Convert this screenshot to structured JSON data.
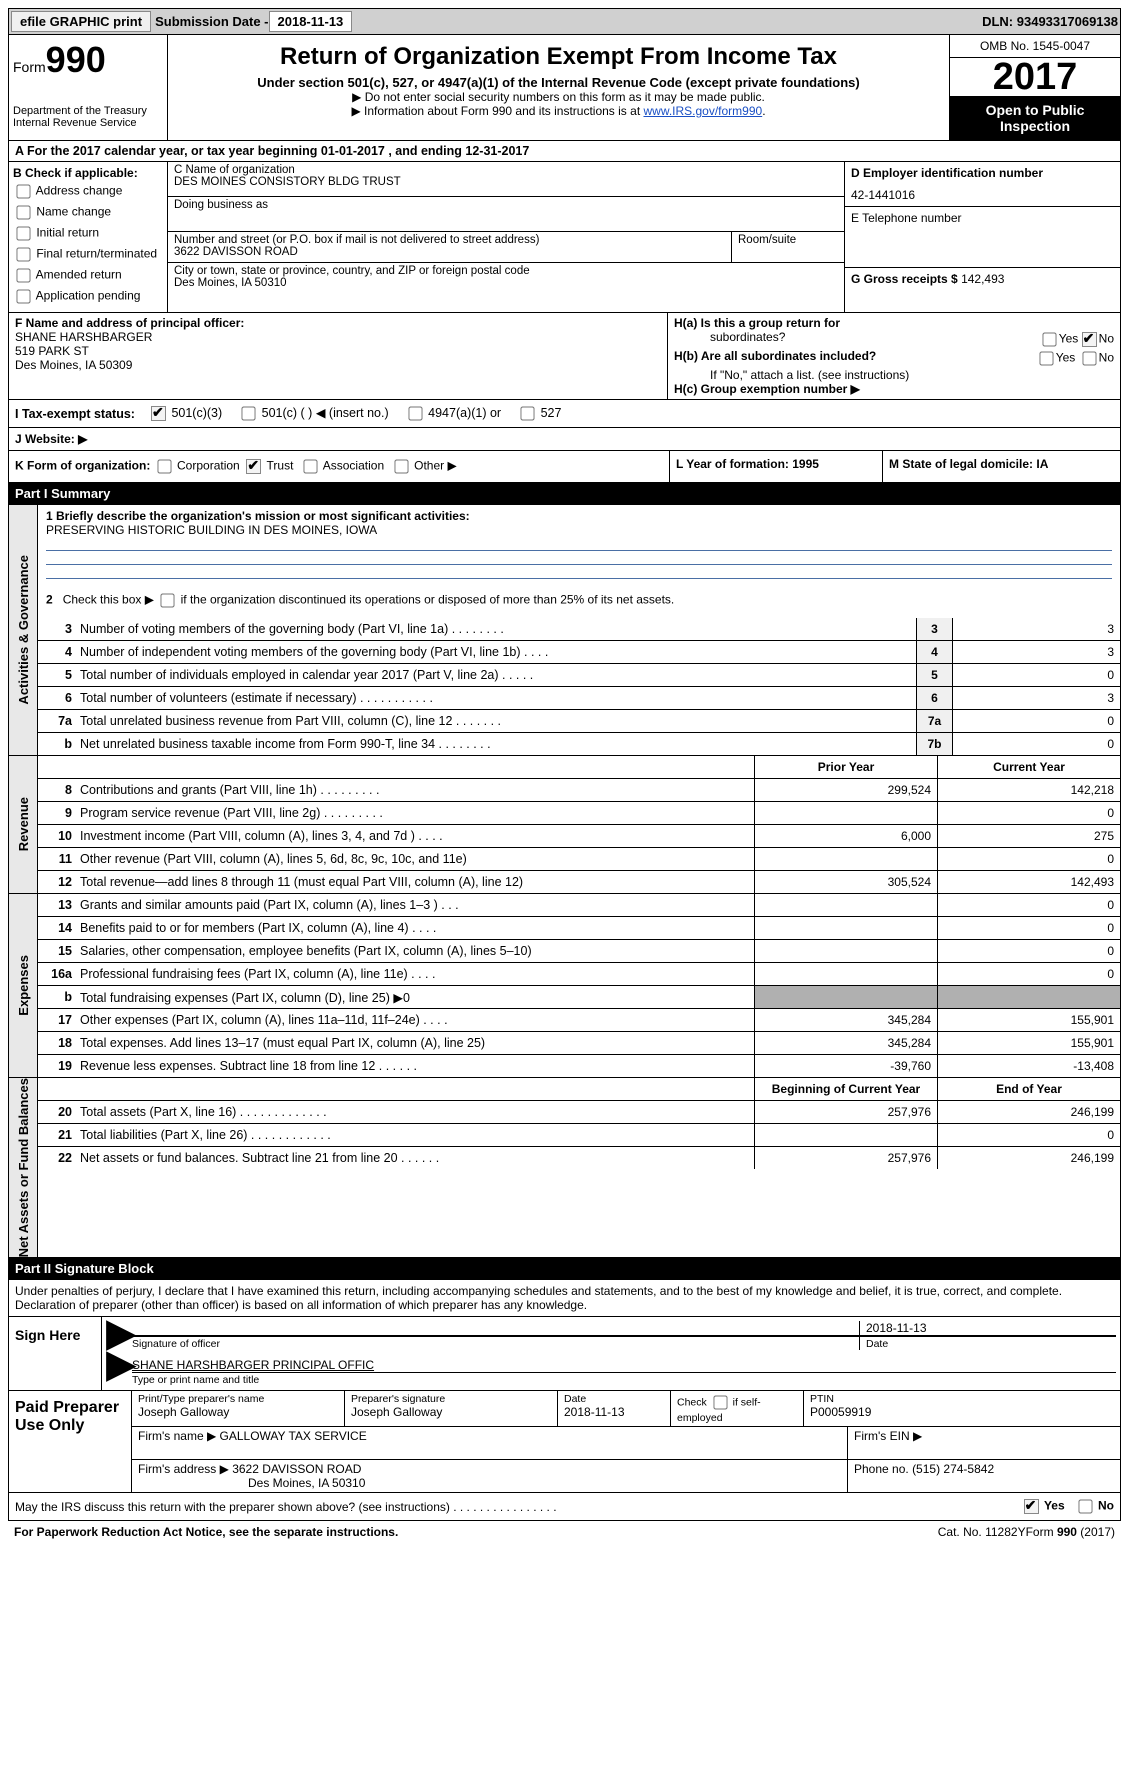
{
  "top": {
    "efile": "efile GRAPHIC print",
    "submission_label": "Submission Date  - ",
    "submission_date": "2018-11-13",
    "dln_label": "DLN: ",
    "dln": "93493317069138"
  },
  "header": {
    "form_label": "Form",
    "form_number": "990",
    "dept1": "Department of the Treasury",
    "dept2": "Internal Revenue Service",
    "title": "Return of Organization Exempt From Income Tax",
    "subtitle": "Under section 501(c), 527, or 4947(a)(1) of the Internal Revenue Code (except private foundations)",
    "note1": "▶ Do not enter social security numbers on this form as it may be made public.",
    "note2_pre": "▶ Information about Form 990 and its instructions is at ",
    "note2_link": "www.IRS.gov/form990",
    "omb": "OMB No. 1545-0047",
    "year": "2017",
    "inspection": "Open to Public Inspection"
  },
  "section_a": "A   For the 2017 calendar year, or tax year beginning 01-01-2017    , and ending 12-31-2017",
  "col_b": {
    "header": "B Check if applicable:",
    "opts": [
      "Address change",
      "Name change",
      "Initial return",
      "Final return/terminated",
      "Amended return",
      "Application pending"
    ]
  },
  "col_c": {
    "name_label": "C Name of organization",
    "name": "DES MOINES CONSISTORY BLDG TRUST",
    "dba_label": "Doing business as",
    "street_label": "Number and street (or P.O. box if mail is not delivered to street address)",
    "street": "3622 DAVISSON ROAD",
    "room_label": "Room/suite",
    "city_label": "City or town, state or province, country, and ZIP or foreign postal code",
    "city": "Des Moines, IA  50310"
  },
  "col_d": {
    "ein_label": "D Employer identification number",
    "ein": "42-1441016",
    "phone_label": "E Telephone number",
    "gross_label": "G Gross receipts $ ",
    "gross": "142,493"
  },
  "officer": {
    "label": "F  Name and address of principal officer:",
    "name": "SHANE HARSHBARGER",
    "street": "519 PARK ST",
    "city": "Des Moines, IA  50309"
  },
  "h": {
    "ha": "H(a)  Is this a group return for",
    "ha2": "subordinates?",
    "hb": "H(b)  Are all subordinates included?",
    "hb_note": "If \"No,\" attach a list. (see instructions)",
    "hc": "H(c)  Group exemption number ▶"
  },
  "tax_exempt": {
    "label": "I   Tax-exempt status:",
    "o1": "501(c)(3)",
    "o2": "501(c) (  ) ◀ (insert no.)",
    "o3": "4947(a)(1) or",
    "o4": "527"
  },
  "website_label": "J  Website: ▶",
  "k": {
    "label": "K Form of organization:",
    "opts": [
      "Corporation",
      "Trust",
      "Association",
      "Other ▶"
    ]
  },
  "l": "L Year of formation: 1995",
  "m": "M State of legal domicile: IA",
  "part1": "Part I     Summary",
  "part2": "Part II     Signature Block",
  "mission": {
    "q1": "1   Briefly describe the organization's mission or most significant activities:",
    "text": "PRESERVING HISTORIC BUILDING IN DES MOINES, IOWA",
    "q2": "2   Check this box ▶       if the organization discontinued its operations or disposed of more than 25% of its net assets."
  },
  "governance_lines": [
    {
      "n": "3",
      "t": "Number of voting members of the governing body (Part VI, line 1a)   .    .    .    .    .    .    .    .",
      "box": "3",
      "v": "3"
    },
    {
      "n": "4",
      "t": "Number of independent voting members of the governing body (Part VI, line 1b)    .    .    .    .",
      "box": "4",
      "v": "3"
    },
    {
      "n": "5",
      "t": "Total number of individuals employed in calendar year 2017 (Part V, line 2a)    .    .    .    .    .",
      "box": "5",
      "v": "0"
    },
    {
      "n": "6",
      "t": "Total number of volunteers (estimate if necessary)    .    .    .    .    .    .    .    .    .    .    .",
      "box": "6",
      "v": "3"
    },
    {
      "n": "7a",
      "t": "Total unrelated business revenue from Part VIII, column (C), line 12    .    .    .    .    .    .    .",
      "box": "7a",
      "v": "0"
    },
    {
      "n": "b",
      "t": "Net unrelated business taxable income from Form 990-T, line 34    .    .    .    .    .    .    .    .",
      "box": "7b",
      "v": "0"
    }
  ],
  "revenue": {
    "header_prior": "Prior Year",
    "header_current": "Current Year",
    "lines": [
      {
        "n": "8",
        "t": "Contributions and grants (Part VIII, line 1h)    .    .    .    .    .    .    .    .    .",
        "p": "299,524",
        "c": "142,218"
      },
      {
        "n": "9",
        "t": "Program service revenue (Part VIII, line 2g)    .    .    .    .    .    .    .    .    .",
        "p": "",
        "c": "0"
      },
      {
        "n": "10",
        "t": "Investment income (Part VIII, column (A), lines 3, 4, and 7d )    .    .    .    .",
        "p": "6,000",
        "c": "275"
      },
      {
        "n": "11",
        "t": "Other revenue (Part VIII, column (A), lines 5, 6d, 8c, 9c, 10c, and 11e)",
        "p": "",
        "c": "0"
      },
      {
        "n": "12",
        "t": "Total revenue—add lines 8 through 11 (must equal Part VIII, column (A), line 12)",
        "p": "305,524",
        "c": "142,493"
      }
    ]
  },
  "expenses": {
    "lines": [
      {
        "n": "13",
        "t": "Grants and similar amounts paid (Part IX, column (A), lines 1–3 )    .    .    .",
        "p": "",
        "c": "0"
      },
      {
        "n": "14",
        "t": "Benefits paid to or for members (Part IX, column (A), line 4)    .    .    .    .",
        "p": "",
        "c": "0"
      },
      {
        "n": "15",
        "t": "Salaries, other compensation, employee benefits (Part IX, column (A), lines 5–10)",
        "p": "",
        "c": "0"
      },
      {
        "n": "16a",
        "t": "Professional fundraising fees (Part IX, column (A), line 11e)    .    .    .    .",
        "p": "",
        "c": "0"
      },
      {
        "n": "b",
        "t": "Total fundraising expenses (Part IX, column (D), line 25) ▶0",
        "p": "grey",
        "c": "grey"
      },
      {
        "n": "17",
        "t": "Other expenses (Part IX, column (A), lines 11a–11d, 11f–24e)    .    .    .    .",
        "p": "345,284",
        "c": "155,901"
      },
      {
        "n": "18",
        "t": "Total expenses. Add lines 13–17 (must equal Part IX, column (A), line 25)",
        "p": "345,284",
        "c": "155,901"
      },
      {
        "n": "19",
        "t": "Revenue less expenses. Subtract line 18 from line 12    .    .    .    .    .    .",
        "p": "-39,760",
        "c": "-13,408"
      }
    ]
  },
  "netassets": {
    "header_begin": "Beginning of Current Year",
    "header_end": "End of Year",
    "lines": [
      {
        "n": "20",
        "t": "Total assets (Part X, line 16)  .    .    .    .    .    .    .    .    .    .    .    .    .",
        "p": "257,976",
        "c": "246,199"
      },
      {
        "n": "21",
        "t": "Total liabilities (Part X, line 26)  .    .    .    .    .    .    .    .    .    .    .    .",
        "p": "",
        "c": "0"
      },
      {
        "n": "22",
        "t": "Net assets or fund balances. Subtract line 21 from line 20 .    .    .    .    .    .",
        "p": "257,976",
        "c": "246,199"
      }
    ]
  },
  "vtabs": {
    "gov": "Activities & Governance",
    "rev": "Revenue",
    "exp": "Expenses",
    "net": "Net Assets or Fund Balances"
  },
  "signature": {
    "declaration": "Under penalties of perjury, I declare that I have examined this return, including accompanying schedules and statements, and to the best of my knowledge and belief, it is true, correct, and complete. Declaration of preparer (other than officer) is based on all information of which preparer has any knowledge.",
    "sign_here": "Sign Here",
    "date": "2018-11-13",
    "sig_officer": "Signature of officer",
    "date_label": "Date",
    "officer_name": "SHANE HARSHBARGER  PRINCIPAL OFFIC",
    "type_name": "Type or print name and title"
  },
  "preparer": {
    "label": "Paid Preparer Use Only",
    "print_label": "Print/Type preparer's name",
    "print_name": "Joseph Galloway",
    "sig_label": "Preparer's signature",
    "sig_name": "Joseph Galloway",
    "date_label": "Date",
    "date": "2018-11-13",
    "check_label": "Check       if self-employed",
    "ptin_label": "PTIN",
    "ptin": "P00059919",
    "firm_name_label": "Firm's name      ▶ ",
    "firm_name": "GALLOWAY TAX SERVICE",
    "firm_ein_label": "Firm's EIN ▶",
    "firm_addr_label": "Firm's address ▶ ",
    "firm_addr1": "3622 DAVISSON ROAD",
    "firm_addr2": "Des Moines, IA  50310",
    "phone_label": "Phone no. ",
    "phone": "(515) 274-5842"
  },
  "discuss": "May the IRS discuss this return with the preparer shown above? (see instructions)    .    .    .    .    .    .    .    .    .    .    .    .    .    .    .    .",
  "footer": {
    "left": "For Paperwork Reduction Act Notice, see the separate instructions.",
    "center": "Cat. No. 11282Y",
    "right": "Form 990 (2017)"
  },
  "yes": "Yes",
  "no": "No"
}
